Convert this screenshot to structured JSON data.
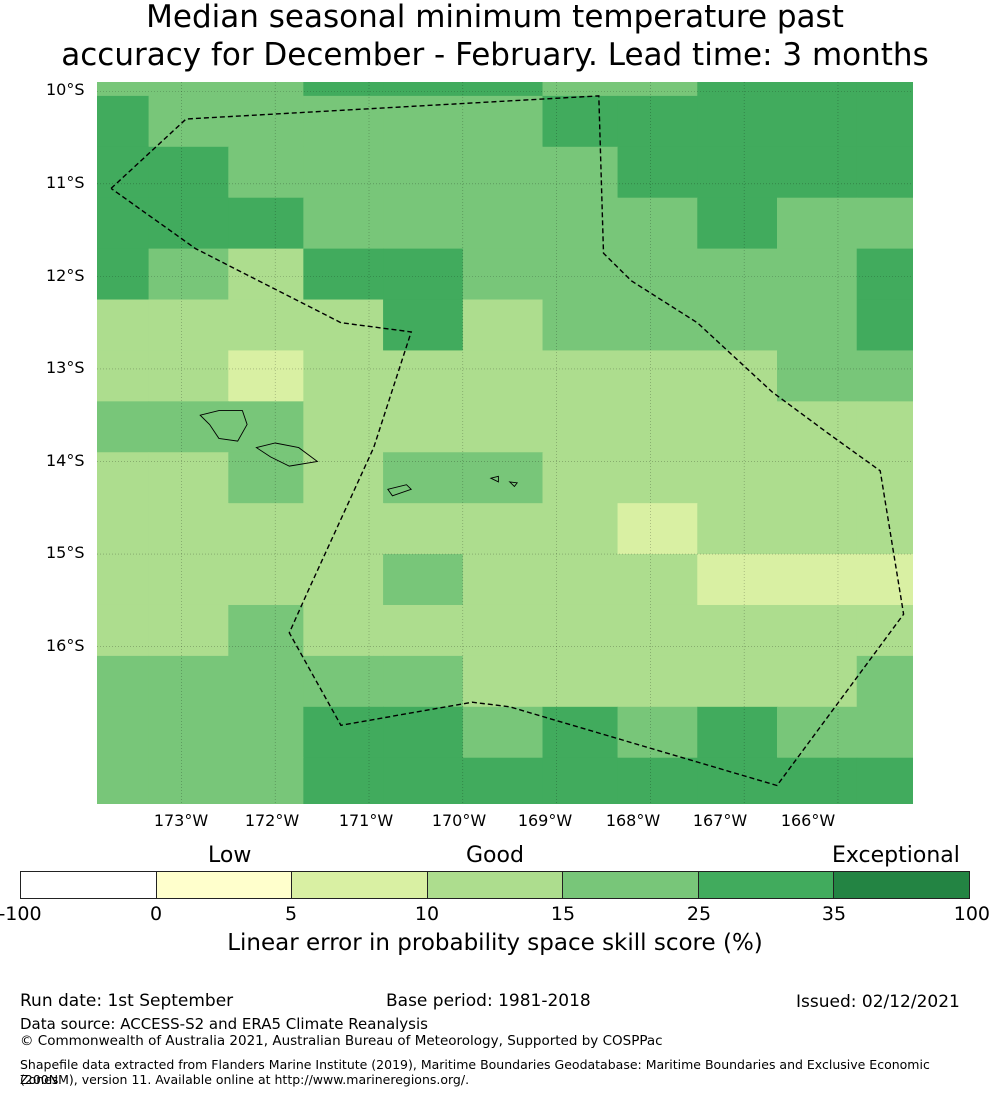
{
  "title_line1": "Median seasonal minimum temperature past",
  "title_line2": "accuracy for December - February. Lead time: 3 months",
  "lat_labels": [
    "10°S",
    "11°S",
    "12°S",
    "13°S",
    "14°S",
    "15°S",
    "16°S"
  ],
  "lon_labels": [
    "173°W",
    "172°W",
    "171°W",
    "170°W",
    "169°W",
    "168°W",
    "167°W",
    "166°W"
  ],
  "map": {
    "extent": {
      "lon_min": -173.9,
      "lon_max": -165.2,
      "lat_min": -17.7,
      "lat_max": -9.9
    },
    "cell_lon_edges": [
      -173.9,
      -173.35,
      -172.5,
      -171.7,
      -170.85,
      -170.0,
      -169.15,
      -168.35,
      -167.5,
      -166.65,
      -165.8,
      -165.2
    ],
    "cell_lat_edges": [
      -9.9,
      -10.05,
      -10.6,
      -11.15,
      -11.7,
      -12.25,
      -12.8,
      -13.35,
      -13.9,
      -14.45,
      -15.0,
      -15.55,
      -16.1,
      -16.65,
      -17.2,
      -17.7
    ],
    "grid_classes": [
      [
        4,
        4,
        4,
        5,
        5,
        5,
        4,
        4,
        5,
        5,
        5
      ],
      [
        5,
        4,
        4,
        4,
        4,
        4,
        5,
        5,
        5,
        5,
        5
      ],
      [
        5,
        5,
        4,
        4,
        4,
        4,
        4,
        5,
        5,
        5,
        5
      ],
      [
        5,
        5,
        5,
        4,
        4,
        4,
        4,
        4,
        5,
        4,
        4
      ],
      [
        5,
        4,
        3,
        5,
        5,
        4,
        4,
        4,
        4,
        4,
        5
      ],
      [
        3,
        3,
        3,
        3,
        5,
        3,
        4,
        4,
        4,
        4,
        5
      ],
      [
        3,
        3,
        2,
        3,
        3,
        3,
        3,
        3,
        3,
        4,
        4
      ],
      [
        4,
        4,
        4,
        3,
        3,
        3,
        3,
        3,
        3,
        3,
        3
      ],
      [
        3,
        3,
        4,
        3,
        4,
        4,
        3,
        3,
        3,
        3,
        3
      ],
      [
        3,
        3,
        3,
        3,
        3,
        3,
        3,
        2,
        3,
        3,
        3
      ],
      [
        3,
        3,
        3,
        3,
        4,
        3,
        3,
        3,
        2,
        2,
        2
      ],
      [
        3,
        3,
        4,
        3,
        3,
        3,
        3,
        3,
        3,
        3,
        3
      ],
      [
        4,
        4,
        4,
        4,
        4,
        3,
        3,
        3,
        3,
        3,
        4
      ],
      [
        4,
        4,
        4,
        5,
        5,
        4,
        5,
        4,
        5,
        4,
        4
      ],
      [
        4,
        4,
        4,
        5,
        5,
        5,
        5,
        5,
        5,
        5,
        5
      ]
    ],
    "boundary": [
      [
        -173.75,
        -11.05
      ],
      [
        -172.95,
        -10.3
      ],
      [
        -168.55,
        -10.05
      ],
      [
        -168.5,
        -11.75
      ],
      [
        -168.2,
        -12.05
      ],
      [
        -167.5,
        -12.5
      ],
      [
        -166.7,
        -13.25
      ],
      [
        -166.1,
        -13.7
      ],
      [
        -165.55,
        -14.1
      ],
      [
        -165.3,
        -15.65
      ],
      [
        -166.65,
        -17.5
      ],
      [
        -169.5,
        -16.65
      ],
      [
        -169.9,
        -16.6
      ],
      [
        -171.3,
        -16.85
      ],
      [
        -171.85,
        -15.85
      ],
      [
        -171.65,
        -15.4
      ],
      [
        -170.95,
        -13.85
      ],
      [
        -170.55,
        -12.6
      ],
      [
        -171.3,
        -12.5
      ],
      [
        -172.85,
        -11.7
      ],
      [
        -173.75,
        -11.05
      ]
    ],
    "islands": [
      [
        [
          -172.8,
          -13.5
        ],
        [
          -172.6,
          -13.45
        ],
        [
          -172.35,
          -13.45
        ],
        [
          -172.3,
          -13.6
        ],
        [
          -172.4,
          -13.78
        ],
        [
          -172.6,
          -13.75
        ],
        [
          -172.7,
          -13.6
        ],
        [
          -172.8,
          -13.5
        ]
      ],
      [
        [
          -172.2,
          -13.85
        ],
        [
          -172.0,
          -13.8
        ],
        [
          -171.75,
          -13.85
        ],
        [
          -171.55,
          -14.0
        ],
        [
          -171.85,
          -14.05
        ],
        [
          -172.05,
          -13.95
        ],
        [
          -172.2,
          -13.85
        ]
      ],
      [
        [
          -170.8,
          -14.3
        ],
        [
          -170.6,
          -14.25
        ],
        [
          -170.55,
          -14.3
        ],
        [
          -170.75,
          -14.37
        ],
        [
          -170.8,
          -14.3
        ]
      ],
      [
        [
          -169.7,
          -14.18
        ],
        [
          -169.62,
          -14.16
        ],
        [
          -169.62,
          -14.22
        ],
        [
          -169.7,
          -14.18
        ]
      ],
      [
        [
          -169.5,
          -14.22
        ],
        [
          -169.42,
          -14.23
        ],
        [
          -169.45,
          -14.27
        ],
        [
          -169.5,
          -14.22
        ]
      ]
    ],
    "colors": [
      "#ffffff",
      "#ffffcc",
      "#d9f0a3",
      "#addd8e",
      "#78c679",
      "#41ab5d",
      "#238443"
    ]
  },
  "colorbar": {
    "categories": [
      "Low",
      "Good",
      "Exceptional"
    ],
    "tick_labels": [
      "-100",
      "0",
      "5",
      "10",
      "15",
      "25",
      "35",
      "100"
    ],
    "label": "Linear error in probability space skill score (%)"
  },
  "footer": {
    "run_date": "Run date: 1st September",
    "base_period": "Base period: 1981-2018",
    "issued": "Issued: 02/12/2021",
    "data_source": "Data source: ACCESS-S2 and ERA5 Climate Reanalysis",
    "copyright": "© Commonwealth of Australia 2021, Australian Bureau of Meteorology, Supported by COSPPac",
    "shapefile_line1": "Shapefile data extracted from Flanders Marine Institute (2019), Maritime Boundaries Geodatabase: Maritime Boundaries and Exclusive Economic Zones",
    "shapefile_line2": "(200NM), version 11. Available online at http://www.marineregions.org/."
  }
}
